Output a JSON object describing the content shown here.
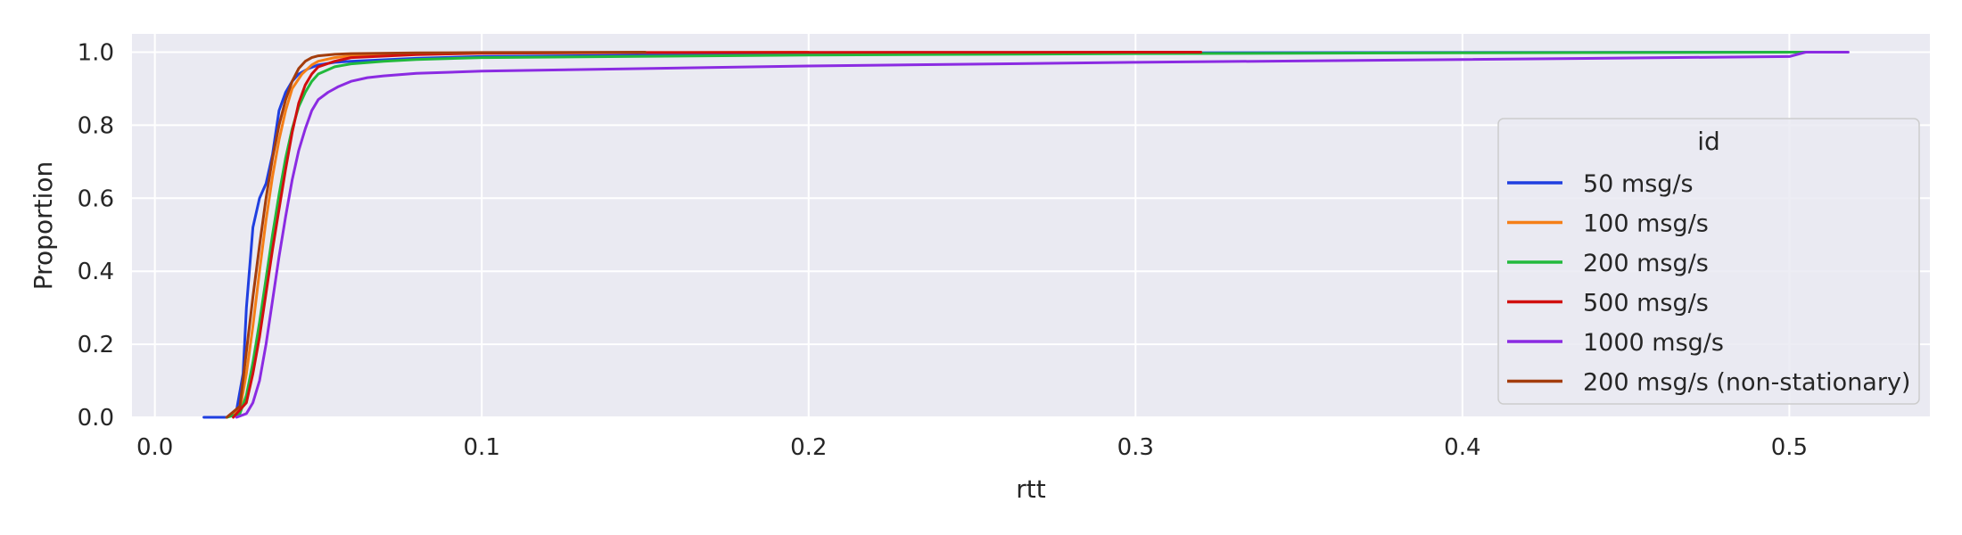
{
  "chart_data": {
    "type": "line",
    "subtype": "ecdf",
    "xlabel": "rtt",
    "ylabel": "Proportion",
    "xlim": [
      -0.007,
      0.543
    ],
    "ylim": [
      0.0,
      1.05
    ],
    "x_ticks": [
      0.0,
      0.1,
      0.2,
      0.3,
      0.4,
      0.5
    ],
    "x_tick_labels": [
      "0.0",
      "0.1",
      "0.2",
      "0.3",
      "0.4",
      "0.5"
    ],
    "y_ticks": [
      0.0,
      0.2,
      0.4,
      0.6,
      0.8,
      1.0
    ],
    "y_tick_labels": [
      "0.0",
      "0.2",
      "0.4",
      "0.6",
      "0.8",
      "1.0"
    ],
    "grid": true,
    "legend": {
      "title": "id",
      "placement": "lower-right",
      "entries": [
        "50 msg/s",
        "100 msg/s",
        "200 msg/s",
        "500 msg/s",
        "1000 msg/s",
        "200 msg/s (non-stationary)"
      ]
    },
    "colors": {
      "background": "#eaeaf2",
      "grid": "#ffffff"
    },
    "series": [
      {
        "name": "50 msg/s",
        "color": "#1f3fe0",
        "x": [
          0.015,
          0.022,
          0.025,
          0.027,
          0.028,
          0.03,
          0.032,
          0.034,
          0.036,
          0.038,
          0.04,
          0.042,
          0.044,
          0.047,
          0.05,
          0.055,
          0.06,
          0.08,
          0.1,
          0.2,
          0.3,
          0.4,
          0.508
        ],
        "y": [
          0.0,
          0.0,
          0.02,
          0.12,
          0.3,
          0.52,
          0.6,
          0.64,
          0.72,
          0.84,
          0.89,
          0.92,
          0.94,
          0.955,
          0.965,
          0.972,
          0.975,
          0.983,
          0.988,
          0.995,
          0.998,
          0.999,
          1.0
        ]
      },
      {
        "name": "100 msg/s",
        "color": "#f57f17",
        "x": [
          0.022,
          0.026,
          0.028,
          0.03,
          0.032,
          0.034,
          0.036,
          0.038,
          0.04,
          0.042,
          0.045,
          0.048,
          0.05,
          0.055,
          0.06,
          0.08,
          0.1,
          0.15,
          0.2
        ],
        "y": [
          0.0,
          0.02,
          0.12,
          0.25,
          0.4,
          0.54,
          0.66,
          0.76,
          0.84,
          0.9,
          0.94,
          0.965,
          0.975,
          0.985,
          0.99,
          0.995,
          0.998,
          0.999,
          1.0
        ]
      },
      {
        "name": "200 msg/s",
        "color": "#22b93c",
        "x": [
          0.022,
          0.026,
          0.028,
          0.03,
          0.032,
          0.034,
          0.036,
          0.038,
          0.04,
          0.042,
          0.044,
          0.046,
          0.048,
          0.05,
          0.055,
          0.06,
          0.07,
          0.08,
          0.1,
          0.2,
          0.3,
          0.4,
          0.51
        ],
        "y": [
          0.0,
          0.01,
          0.06,
          0.15,
          0.26,
          0.38,
          0.5,
          0.61,
          0.71,
          0.79,
          0.85,
          0.89,
          0.92,
          0.94,
          0.96,
          0.968,
          0.975,
          0.98,
          0.985,
          0.992,
          0.996,
          0.998,
          1.0
        ]
      },
      {
        "name": "500 msg/s",
        "color": "#d10f0f",
        "x": [
          0.024,
          0.028,
          0.03,
          0.032,
          0.034,
          0.036,
          0.038,
          0.04,
          0.042,
          0.044,
          0.046,
          0.048,
          0.05,
          0.055,
          0.06,
          0.08,
          0.1,
          0.15,
          0.2,
          0.32
        ],
        "y": [
          0.0,
          0.04,
          0.12,
          0.22,
          0.34,
          0.46,
          0.57,
          0.68,
          0.78,
          0.86,
          0.91,
          0.94,
          0.96,
          0.975,
          0.985,
          0.993,
          0.997,
          0.999,
          0.9995,
          1.0
        ]
      },
      {
        "name": "1000 msg/s",
        "color": "#8b2be2",
        "x": [
          0.025,
          0.028,
          0.03,
          0.032,
          0.034,
          0.036,
          0.038,
          0.04,
          0.042,
          0.044,
          0.046,
          0.048,
          0.05,
          0.053,
          0.056,
          0.06,
          0.065,
          0.07,
          0.08,
          0.1,
          0.15,
          0.2,
          0.3,
          0.4,
          0.5,
          0.505,
          0.518
        ],
        "y": [
          0.0,
          0.01,
          0.04,
          0.1,
          0.2,
          0.32,
          0.44,
          0.55,
          0.65,
          0.73,
          0.79,
          0.84,
          0.87,
          0.89,
          0.905,
          0.92,
          0.93,
          0.935,
          0.942,
          0.948,
          0.955,
          0.962,
          0.972,
          0.98,
          0.988,
          1.0,
          1.0
        ]
      },
      {
        "name": "200 msg/s (non-stationary)",
        "color": "#a33d0d",
        "x": [
          0.022,
          0.026,
          0.028,
          0.03,
          0.032,
          0.034,
          0.036,
          0.038,
          0.04,
          0.042,
          0.044,
          0.046,
          0.048,
          0.05,
          0.055,
          0.06,
          0.08,
          0.1,
          0.15
        ],
        "y": [
          0.0,
          0.03,
          0.18,
          0.33,
          0.47,
          0.6,
          0.71,
          0.8,
          0.87,
          0.92,
          0.955,
          0.975,
          0.985,
          0.99,
          0.994,
          0.996,
          0.998,
          0.999,
          1.0
        ]
      }
    ]
  }
}
